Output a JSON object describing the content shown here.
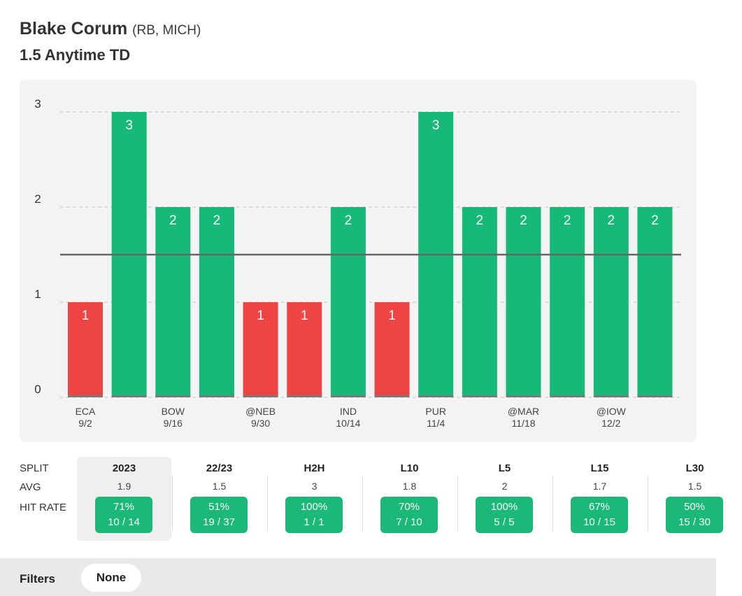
{
  "header": {
    "player_name": "Blake Corum",
    "player_pos": "(RB, MICH)",
    "market": "1.5 Anytime TD"
  },
  "colors": {
    "over": "#17b978",
    "under": "#ee4444",
    "line": "#666666"
  },
  "chart_data": {
    "type": "bar",
    "title": "",
    "xlabel": "",
    "ylabel": "",
    "ylim": [
      0,
      3
    ],
    "yticks": [
      "0",
      "1",
      "2",
      "3"
    ],
    "threshold": 1.5,
    "values": [
      1,
      3,
      2,
      2,
      1,
      1,
      2,
      1,
      3,
      2,
      2,
      2,
      2,
      2
    ],
    "categories": [
      {
        "team": "ECA",
        "date": "9/2"
      },
      {
        "team": "",
        "date": ""
      },
      {
        "team": "BOW",
        "date": "9/16"
      },
      {
        "team": "",
        "date": ""
      },
      {
        "team": "@NEB",
        "date": "9/30"
      },
      {
        "team": "",
        "date": ""
      },
      {
        "team": "IND",
        "date": "10/14"
      },
      {
        "team": "",
        "date": ""
      },
      {
        "team": "PUR",
        "date": "11/4"
      },
      {
        "team": "",
        "date": ""
      },
      {
        "team": "@MAR",
        "date": "11/18"
      },
      {
        "team": "",
        "date": ""
      },
      {
        "team": "@IOW",
        "date": "12/2"
      },
      {
        "team": "",
        "date": ""
      }
    ],
    "grid": true,
    "legend": "none"
  },
  "splits": {
    "row_labels": {
      "split": "SPLIT",
      "avg": "AVG",
      "hit_rate": "HIT RATE"
    },
    "columns": [
      {
        "name": "2023",
        "avg": "1.9",
        "pct": "71%",
        "frac": "10 / 14"
      },
      {
        "name": "22/23",
        "avg": "1.5",
        "pct": "51%",
        "frac": "19 / 37"
      },
      {
        "name": "H2H",
        "avg": "3",
        "pct": "100%",
        "frac": "1 / 1"
      },
      {
        "name": "L10",
        "avg": "1.8",
        "pct": "70%",
        "frac": "7 / 10"
      },
      {
        "name": "L5",
        "avg": "2",
        "pct": "100%",
        "frac": "5 / 5"
      },
      {
        "name": "L15",
        "avg": "1.7",
        "pct": "67%",
        "frac": "10 / 15"
      },
      {
        "name": "L30",
        "avg": "1.5",
        "pct": "50%",
        "frac": "15 / 30"
      }
    ]
  },
  "filters": {
    "label": "Filters",
    "value": "None"
  }
}
